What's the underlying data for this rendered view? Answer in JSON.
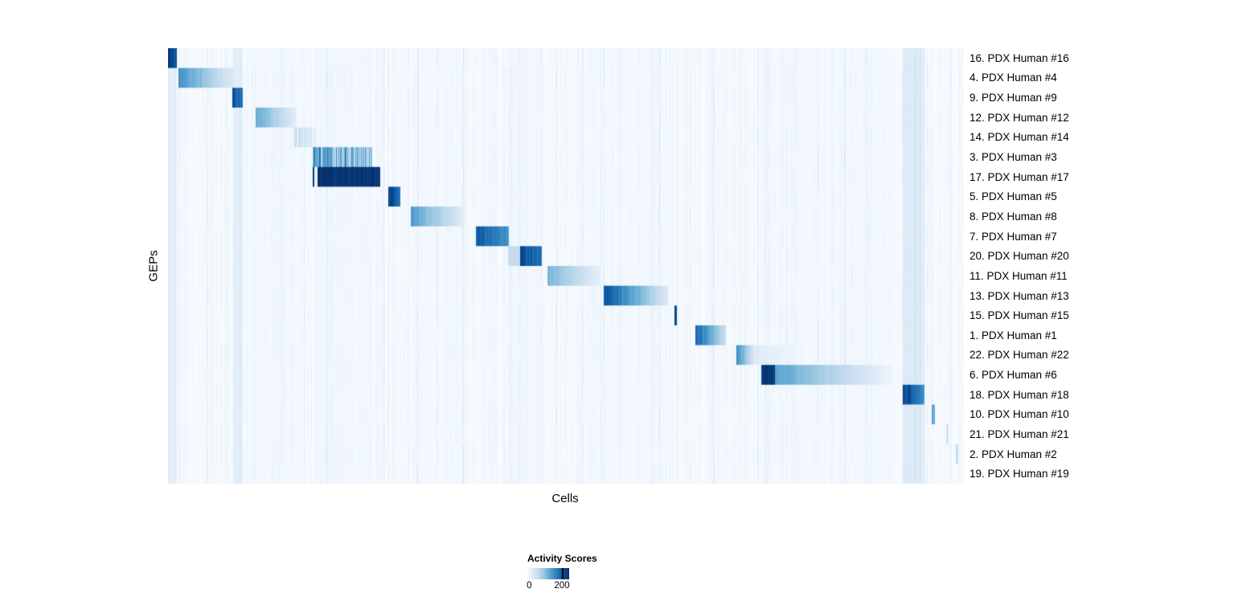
{
  "figure": {
    "xlabel": "Cells",
    "ylabel": "GEPs"
  },
  "legend": {
    "title": "Activity Scores",
    "tick_labels": [
      "0",
      "200"
    ]
  },
  "chart_data": {
    "type": "heatmap",
    "title": "",
    "xlabel": "Cells",
    "ylabel": "GEPs",
    "legend": {
      "title": "Activity Scores",
      "ticks": [
        0,
        200
      ]
    },
    "value_range": [
      0,
      240
    ],
    "colormap": "Blues",
    "colormap_stops": [
      "#F7FBFF",
      "#DEEBF7",
      "#C6DBEF",
      "#9ECAE1",
      "#6BAED6",
      "#4292C6",
      "#2171B5",
      "#08519C",
      "#08306B"
    ],
    "rows": [
      {
        "label": "16. PDX Human #16",
        "segments": [
          [
            0.0,
            0.011,
            235,
            200
          ]
        ]
      },
      {
        "label": "4. PDX Human #4",
        "segments": [
          [
            0.013,
            0.085,
            150,
            25
          ]
        ]
      },
      {
        "label": "9. PDX Human #9",
        "segments": [
          [
            0.08,
            0.094,
            215,
            180
          ]
        ]
      },
      {
        "label": "12. PDX Human #12",
        "segments": [
          [
            0.11,
            0.161,
            130,
            25
          ]
        ]
      },
      {
        "label": "14. PDX Human #14",
        "segments": [
          [
            0.158,
            0.186,
            70,
            30
          ]
        ],
        "striped": true
      },
      {
        "label": "3. PDX Human #3",
        "segments": [
          [
            0.181,
            0.184,
            250,
            250
          ],
          [
            0.184,
            0.256,
            185,
            115
          ]
        ],
        "striped": true
      },
      {
        "label": "17. PDX Human #17",
        "segments": [
          [
            0.181,
            0.184,
            250,
            250
          ],
          [
            0.188,
            0.266,
            250,
            240
          ]
        ]
      },
      {
        "label": "5. PDX Human #5",
        "segments": [
          [
            0.277,
            0.292,
            230,
            185
          ]
        ]
      },
      {
        "label": "8. PDX Human #8",
        "segments": [
          [
            0.305,
            0.373,
            140,
            25
          ]
        ]
      },
      {
        "label": "7. PDX Human #7",
        "segments": [
          [
            0.387,
            0.428,
            205,
            150
          ]
        ]
      },
      {
        "label": "20. PDX Human #20",
        "segments": [
          [
            0.427,
            0.442,
            60,
            60
          ],
          [
            0.442,
            0.47,
            225,
            180
          ]
        ]
      },
      {
        "label": "11. PDX Human #11",
        "segments": [
          [
            0.477,
            0.544,
            115,
            20
          ]
        ]
      },
      {
        "label": "13. PDX Human #13",
        "segments": [
          [
            0.548,
            0.628,
            215,
            35
          ]
        ]
      },
      {
        "label": "15. PDX Human #15",
        "segments": [
          [
            0.636,
            0.64,
            230,
            230
          ]
        ]
      },
      {
        "label": "1. PDX Human #1",
        "segments": [
          [
            0.663,
            0.701,
            195,
            55
          ]
        ]
      },
      {
        "label": "22. PDX Human #22",
        "segments": [
          [
            0.714,
            0.737,
            160,
            35
          ],
          [
            0.737,
            0.8,
            30,
            8
          ]
        ]
      },
      {
        "label": "6. PDX Human #6",
        "segments": [
          [
            0.746,
            0.763,
            245,
            245
          ],
          [
            0.763,
            0.912,
            135,
            10
          ]
        ]
      },
      {
        "label": "18. PDX Human #18",
        "segments": [
          [
            0.924,
            0.951,
            235,
            150
          ]
        ]
      },
      {
        "label": "10. PDX Human #10",
        "segments": [
          [
            0.96,
            0.964,
            130,
            130
          ]
        ]
      },
      {
        "label": "21. PDX Human #21",
        "segments": [
          [
            0.978,
            0.981,
            45,
            45
          ]
        ]
      },
      {
        "label": "2. PDX Human #2",
        "segments": [
          [
            0.99,
            0.993,
            60,
            60
          ]
        ]
      },
      {
        "label": "19. PDX Human #19",
        "segments": []
      }
    ],
    "column_bands": [
      [
        0.0,
        0.011,
        26
      ],
      [
        0.081,
        0.094,
        24
      ],
      [
        0.11,
        0.161,
        6
      ],
      [
        0.186,
        0.256,
        7
      ],
      [
        0.305,
        0.373,
        6
      ],
      [
        0.427,
        0.47,
        7
      ],
      [
        0.548,
        0.628,
        5
      ],
      [
        0.746,
        0.912,
        5
      ],
      [
        0.924,
        0.951,
        30
      ]
    ],
    "noise": {
      "seed": 7,
      "base_max": 18,
      "spike_prob": 0.03,
      "spike_add": 20
    }
  }
}
